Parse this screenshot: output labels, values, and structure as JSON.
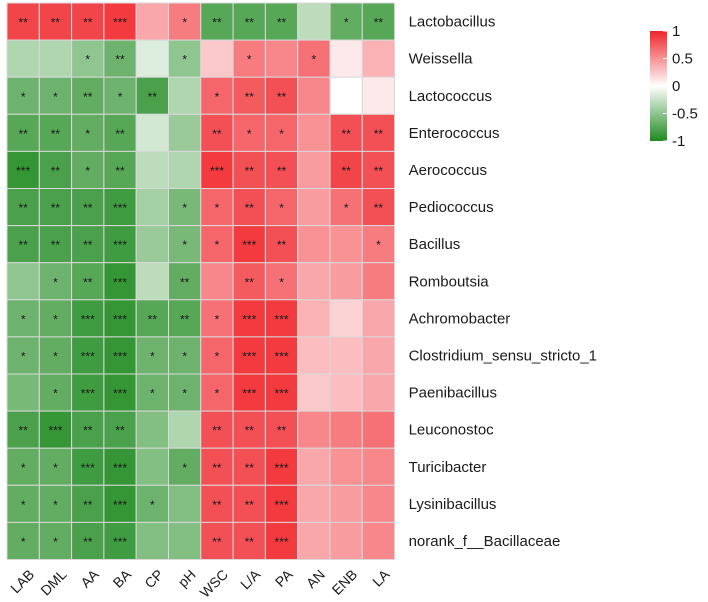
{
  "chart_data": {
    "type": "heatmap",
    "title": "",
    "xlabel": "",
    "ylabel": "",
    "columns": [
      "LAB",
      "DML",
      "AA",
      "BA",
      "CP",
      "pH",
      "WSC",
      "L/A",
      "PA",
      "AN",
      "ENB",
      "LA"
    ],
    "rows": [
      "Lactobacillus",
      "Weissella",
      "Lactococcus",
      "Enterococcus",
      "Aerococcus",
      "Pediococcus",
      "Bacillus",
      "Romboutsia",
      "Achromobacter",
      "Clostridium_sensu_stricto_1",
      "Paenibacillus",
      "Leuconostoc",
      "Turicibacter",
      "Lysinibacillus",
      "norank_f__Bacillaceae"
    ],
    "values": [
      [
        0.85,
        0.85,
        0.85,
        0.9,
        0.4,
        0.6,
        -0.75,
        -0.75,
        -0.75,
        -0.3,
        -0.7,
        -0.75
      ],
      [
        -0.35,
        -0.35,
        -0.5,
        -0.65,
        -0.15,
        -0.5,
        0.25,
        0.6,
        0.55,
        0.65,
        0.1,
        0.35
      ],
      [
        -0.65,
        -0.65,
        -0.7,
        -0.65,
        -0.8,
        -0.35,
        0.7,
        0.75,
        0.8,
        0.55,
        0.0,
        0.1
      ],
      [
        -0.75,
        -0.75,
        -0.7,
        -0.75,
        -0.2,
        -0.45,
        0.8,
        0.7,
        0.7,
        0.5,
        0.8,
        0.8
      ],
      [
        -0.9,
        -0.8,
        -0.7,
        -0.75,
        -0.3,
        -0.35,
        0.9,
        0.8,
        0.8,
        0.45,
        0.85,
        0.8
      ],
      [
        -0.8,
        -0.8,
        -0.8,
        -0.85,
        -0.4,
        -0.6,
        0.7,
        0.8,
        0.7,
        0.45,
        0.65,
        0.8
      ],
      [
        -0.8,
        -0.8,
        -0.8,
        -0.85,
        -0.45,
        -0.6,
        0.7,
        0.9,
        0.8,
        0.5,
        0.5,
        0.6
      ],
      [
        -0.5,
        -0.65,
        -0.75,
        -0.9,
        -0.3,
        -0.7,
        0.55,
        0.75,
        0.65,
        0.4,
        0.45,
        0.6
      ],
      [
        -0.65,
        -0.7,
        -0.85,
        -0.9,
        -0.75,
        -0.75,
        0.65,
        0.9,
        0.9,
        0.35,
        0.2,
        0.4
      ],
      [
        -0.65,
        -0.7,
        -0.85,
        -0.9,
        -0.65,
        -0.65,
        0.7,
        0.9,
        0.9,
        0.3,
        0.3,
        0.4
      ],
      [
        -0.6,
        -0.7,
        -0.85,
        -0.9,
        -0.65,
        -0.65,
        0.7,
        0.9,
        0.9,
        0.25,
        0.3,
        0.4
      ],
      [
        -0.8,
        -0.9,
        -0.8,
        -0.8,
        -0.55,
        -0.35,
        0.8,
        0.8,
        0.8,
        0.55,
        0.6,
        0.65
      ],
      [
        -0.7,
        -0.7,
        -0.85,
        -0.9,
        -0.55,
        -0.7,
        0.8,
        0.8,
        0.9,
        0.4,
        0.5,
        0.55
      ],
      [
        -0.7,
        -0.7,
        -0.8,
        -0.9,
        -0.65,
        -0.55,
        0.8,
        0.8,
        0.9,
        0.4,
        0.45,
        0.55
      ],
      [
        -0.7,
        -0.7,
        -0.8,
        -0.85,
        -0.55,
        -0.55,
        0.8,
        0.8,
        0.9,
        0.4,
        0.45,
        0.55
      ]
    ],
    "significance": [
      [
        "**",
        "**",
        "**",
        "***",
        "",
        "*",
        "**",
        "**",
        "**",
        "",
        "*",
        "**"
      ],
      [
        "",
        "",
        "*",
        "**",
        "",
        "*",
        "",
        "*",
        "",
        "*",
        "",
        ""
      ],
      [
        "*",
        "*",
        "**",
        "*",
        "**",
        "",
        "*",
        "**",
        "**",
        "",
        "",
        ""
      ],
      [
        "**",
        "**",
        "*",
        "**",
        "",
        "",
        "**",
        "*",
        "*",
        "",
        "**",
        "**"
      ],
      [
        "***",
        "**",
        "*",
        "**",
        "",
        "",
        "***",
        "**",
        "**",
        "",
        "**",
        "**"
      ],
      [
        "**",
        "**",
        "**",
        "***",
        "",
        "*",
        "*",
        "**",
        "*",
        "",
        "*",
        "**"
      ],
      [
        "**",
        "**",
        "**",
        "***",
        "",
        "*",
        "*",
        "***",
        "**",
        "",
        "",
        "*"
      ],
      [
        "",
        "*",
        "**",
        "***",
        "",
        "**",
        "",
        "**",
        "*",
        "",
        "",
        ""
      ],
      [
        "*",
        "*",
        "***",
        "***",
        "**",
        "**",
        "*",
        "***",
        "***",
        "",
        "",
        ""
      ],
      [
        "*",
        "*",
        "***",
        "***",
        "*",
        "*",
        "*",
        "***",
        "***",
        "",
        "",
        ""
      ],
      [
        "",
        "*",
        "***",
        "***",
        "*",
        "*",
        "*",
        "***",
        "***",
        "",
        "",
        ""
      ],
      [
        "**",
        "***",
        "**",
        "**",
        "",
        "",
        "**",
        "**",
        "**",
        "",
        "",
        ""
      ],
      [
        "*",
        "*",
        "***",
        "***",
        "",
        "*",
        "**",
        "**",
        "***",
        "",
        "",
        ""
      ],
      [
        "*",
        "*",
        "**",
        "***",
        "*",
        "",
        "**",
        "**",
        "***",
        "",
        "",
        ""
      ],
      [
        "*",
        "*",
        "**",
        "***",
        "",
        "",
        "**",
        "**",
        "***",
        "",
        "",
        ""
      ]
    ],
    "color_scale": {
      "min": -1,
      "mid": 0,
      "max": 1,
      "low_color": "#1e8a1e",
      "mid_color": "#ffffff",
      "high_color": "#f0242a"
    },
    "legend": {
      "position": "top-right",
      "ticks": [
        "1",
        "0.5",
        "0",
        "-0.5",
        "-1"
      ]
    },
    "grid": true
  }
}
